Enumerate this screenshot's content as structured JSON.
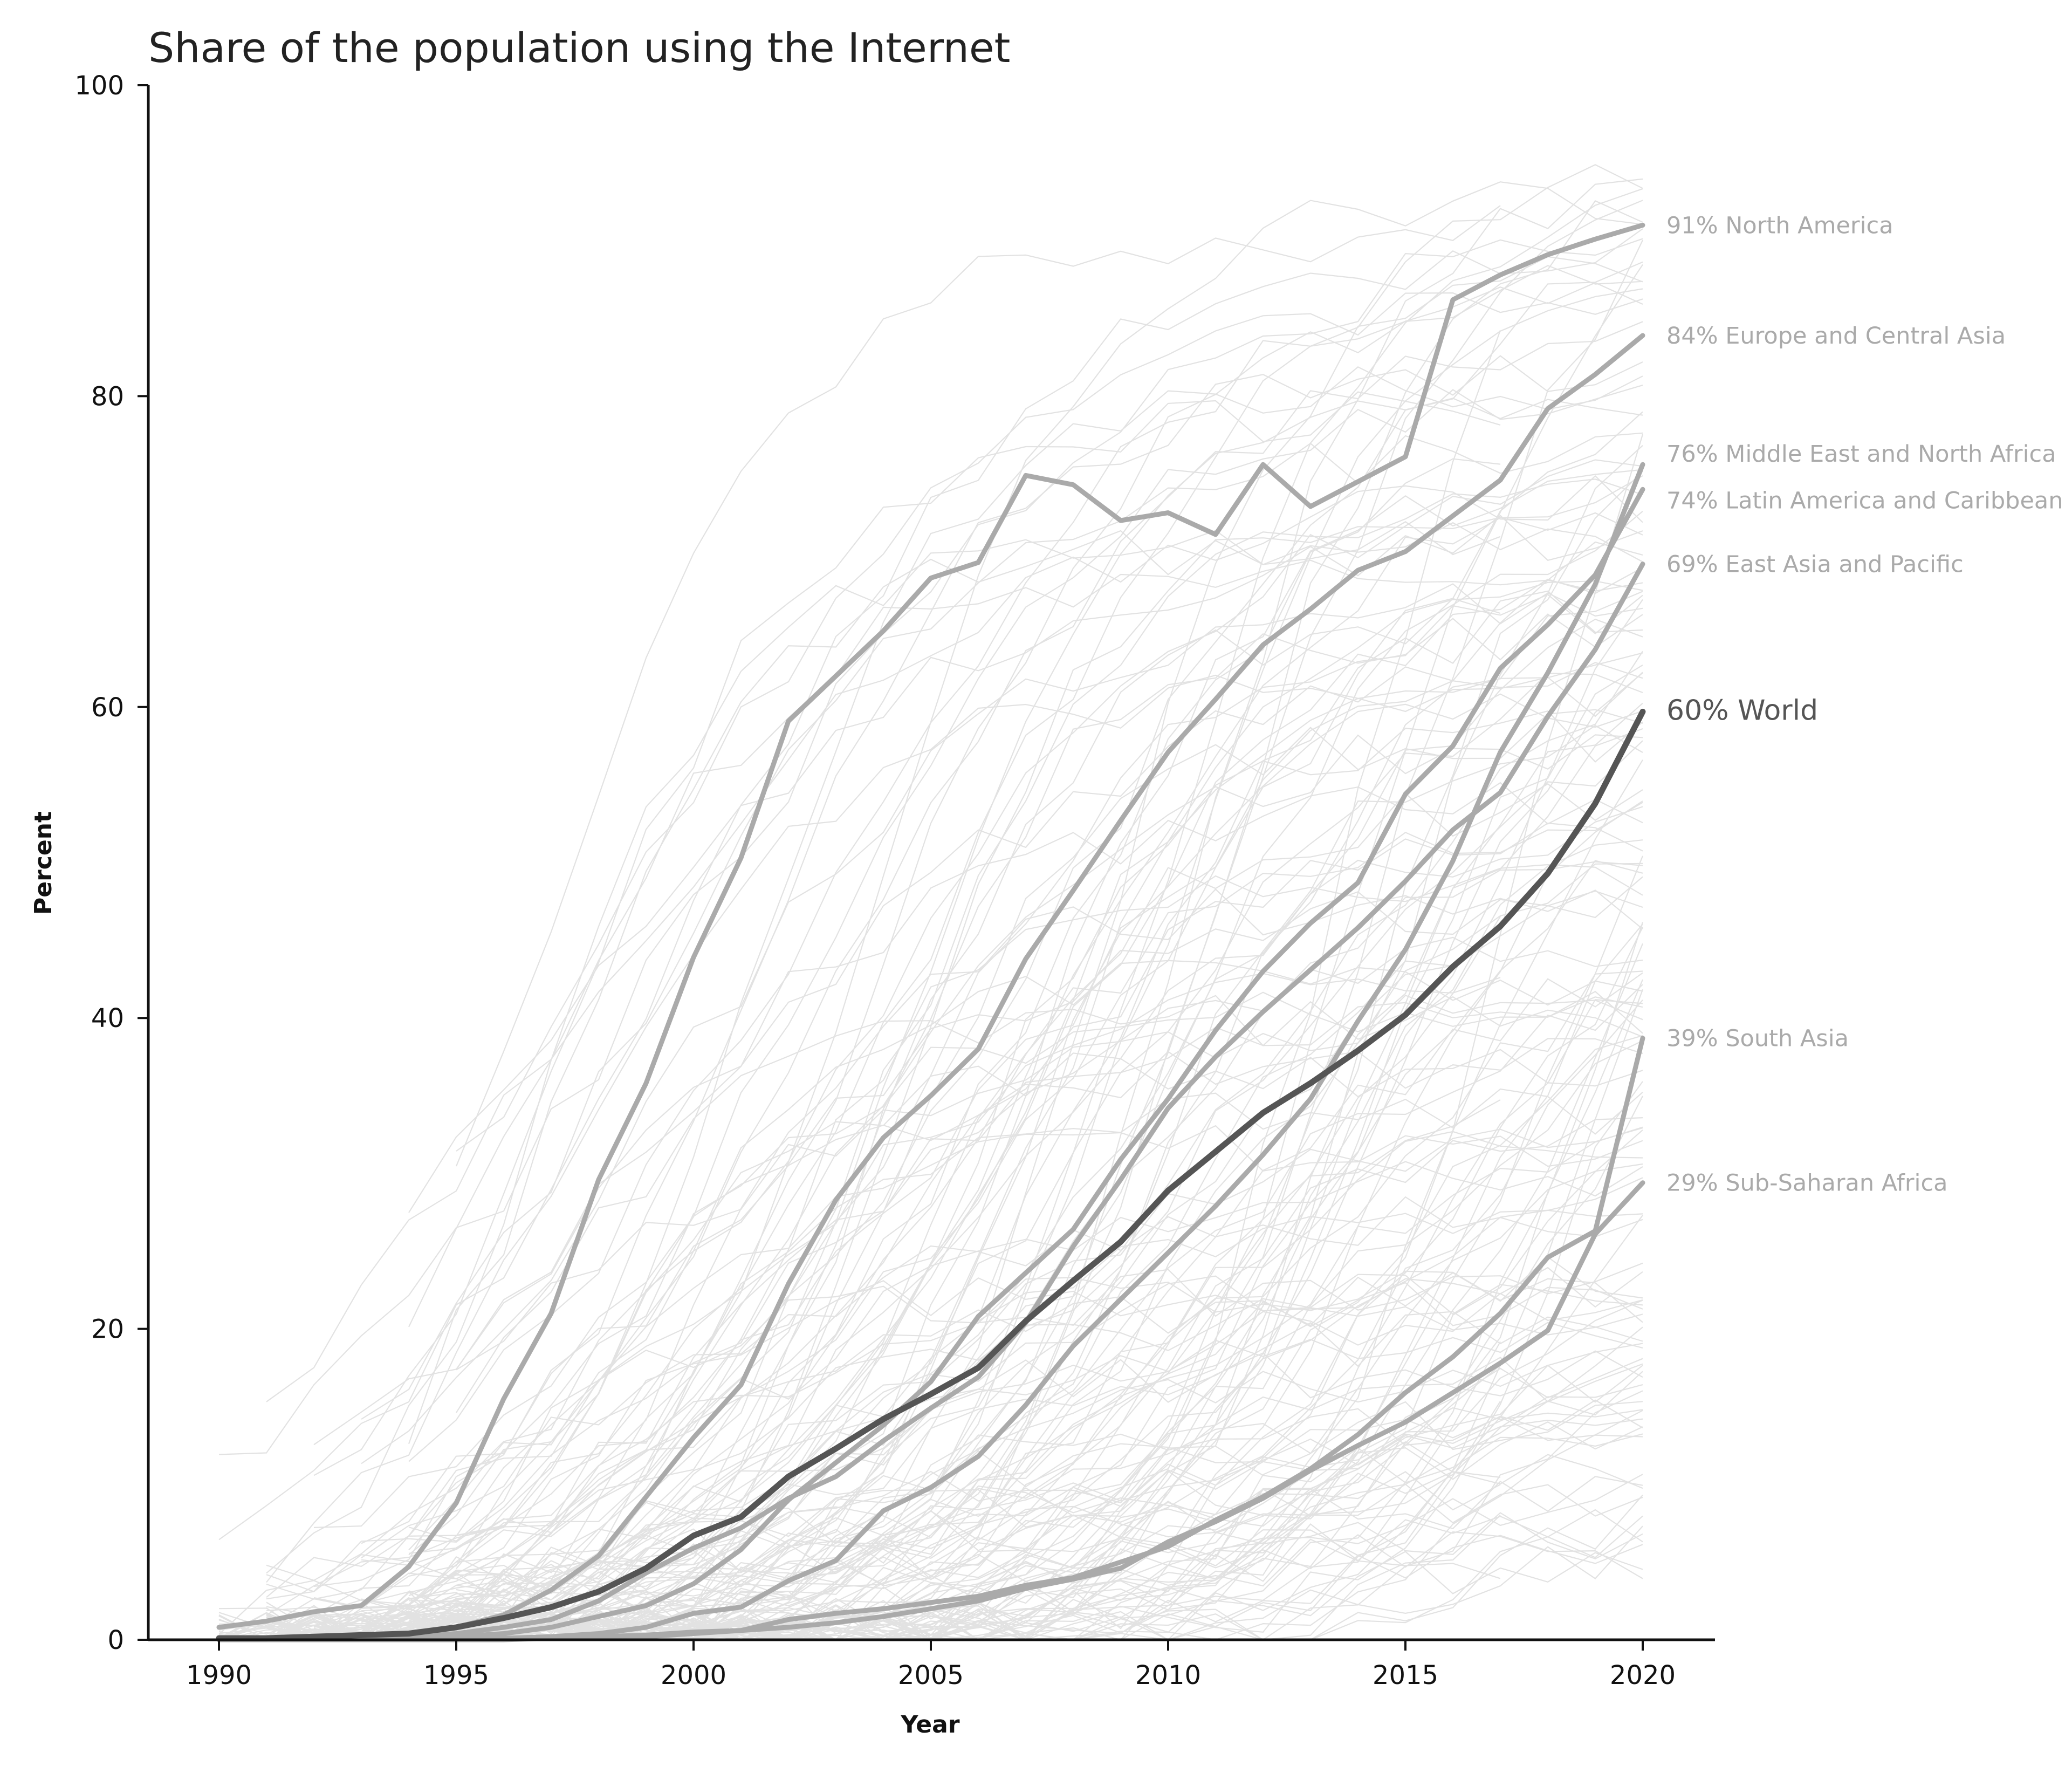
{
  "chart_data": {
    "type": "line",
    "title": "Share of the population using the Internet",
    "xlabel": "Year",
    "ylabel": "Percent",
    "xlim": [
      1990,
      2020
    ],
    "ylim": [
      0,
      100
    ],
    "x_ticks": [
      1990,
      1995,
      2000,
      2005,
      2010,
      2015,
      2020
    ],
    "y_ticks": [
      0,
      20,
      40,
      60,
      80,
      100
    ],
    "grid": false,
    "legend": "none (direct labels at right end of lines)",
    "colors": {
      "world": "#555555",
      "region": "#aaaaaa",
      "country": "#e2e2e2"
    },
    "series": [
      {
        "name": "World",
        "label": "60% World",
        "highlight": true,
        "x": [
          1990,
          1991,
          1992,
          1993,
          1994,
          1995,
          1996,
          1997,
          1998,
          1999,
          2000,
          2001,
          2002,
          2003,
          2004,
          2005,
          2006,
          2007,
          2008,
          2009,
          2010,
          2011,
          2012,
          2013,
          2014,
          2015,
          2016,
          2017,
          2018,
          2019,
          2020
        ],
        "y": [
          0.1,
          0.1,
          0.2,
          0.3,
          0.4,
          0.8,
          1.4,
          2.1,
          3.1,
          4.6,
          6.7,
          7.9,
          10.5,
          12.3,
          14.2,
          15.8,
          17.5,
          20.5,
          23.1,
          25.6,
          28.9,
          31.4,
          33.9,
          35.8,
          37.9,
          40.2,
          43.3,
          45.9,
          49.3,
          53.8,
          59.7
        ]
      },
      {
        "name": "North America",
        "label": "91% North America",
        "x": [
          1990,
          1991,
          1992,
          1993,
          1994,
          1995,
          1996,
          1997,
          1998,
          1999,
          2000,
          2001,
          2002,
          2003,
          2004,
          2005,
          2006,
          2007,
          2008,
          2009,
          2010,
          2011,
          2012,
          2013,
          2014,
          2015,
          2016,
          2017,
          2018,
          2019,
          2020
        ],
        "y": [
          0.8,
          1.2,
          1.8,
          2.2,
          4.7,
          8.8,
          15.5,
          21.0,
          29.6,
          35.8,
          43.9,
          50.3,
          59.1,
          62.0,
          64.9,
          68.3,
          69.3,
          74.9,
          74.3,
          72.0,
          72.5,
          71.1,
          75.6,
          72.9,
          74.5,
          76.1,
          86.2,
          87.8,
          89.1,
          90.1,
          91.0
        ]
      },
      {
        "name": "Europe and Central Asia",
        "label": "84% Europe and Central Asia",
        "x": [
          1990,
          1991,
          1992,
          1993,
          1994,
          1995,
          1996,
          1997,
          1998,
          1999,
          2000,
          2001,
          2002,
          2003,
          2004,
          2005,
          2006,
          2007,
          2008,
          2009,
          2010,
          2011,
          2012,
          2013,
          2014,
          2015,
          2016,
          2017,
          2018,
          2019,
          2020
        ],
        "y": [
          0.1,
          0.1,
          0.2,
          0.3,
          0.4,
          0.8,
          1.6,
          3.2,
          5.4,
          9.2,
          13.0,
          16.4,
          22.9,
          28.3,
          32.3,
          35.0,
          38.0,
          43.8,
          48.2,
          52.7,
          57.1,
          60.5,
          64.0,
          66.3,
          68.8,
          70.0,
          72.3,
          74.6,
          79.2,
          81.4,
          83.9
        ]
      },
      {
        "name": "Middle East and North Africa",
        "label": "76% Middle East and North Africa",
        "x": [
          1990,
          1991,
          1992,
          1993,
          1994,
          1995,
          1996,
          1997,
          1998,
          1999,
          2000,
          2001,
          2002,
          2003,
          2004,
          2005,
          2006,
          2007,
          2008,
          2009,
          2010,
          2011,
          2012,
          2013,
          2014,
          2015,
          2016,
          2017,
          2018,
          2019,
          2020
        ],
        "y": [
          0.0,
          0.0,
          0.0,
          0.0,
          0.0,
          0.0,
          0.1,
          0.2,
          0.4,
          0.8,
          1.7,
          2.1,
          3.8,
          5.1,
          8.3,
          9.8,
          11.8,
          15.1,
          18.9,
          21.9,
          24.9,
          27.9,
          31.2,
          34.8,
          39.8,
          44.4,
          50.1,
          57.1,
          62.2,
          67.9,
          75.6
        ]
      },
      {
        "name": "Latin America and Caribbean",
        "label": "74% Latin America and Caribbean",
        "x": [
          1990,
          1991,
          1992,
          1993,
          1994,
          1995,
          1996,
          1997,
          1998,
          1999,
          2000,
          2001,
          2002,
          2003,
          2004,
          2005,
          2006,
          2007,
          2008,
          2009,
          2010,
          2011,
          2012,
          2013,
          2014,
          2015,
          2016,
          2017,
          2018,
          2019,
          2020
        ],
        "y": [
          0.0,
          0.0,
          0.0,
          0.0,
          0.1,
          0.2,
          0.4,
          0.8,
          1.5,
          2.2,
          3.6,
          5.8,
          9.0,
          11.4,
          13.8,
          16.6,
          20.8,
          23.6,
          26.4,
          30.9,
          34.8,
          39.2,
          43.0,
          46.1,
          48.7,
          54.4,
          57.5,
          62.5,
          65.3,
          68.5,
          74.0
        ]
      },
      {
        "name": "East Asia and Pacific",
        "label": "69% East Asia and Pacific",
        "x": [
          1990,
          1991,
          1992,
          1993,
          1994,
          1995,
          1996,
          1997,
          1998,
          1999,
          2000,
          2001,
          2002,
          2003,
          2004,
          2005,
          2006,
          2007,
          2008,
          2009,
          2010,
          2011,
          2012,
          2013,
          2014,
          2015,
          2016,
          2017,
          2018,
          2019,
          2020
        ],
        "y": [
          0.0,
          0.0,
          0.0,
          0.1,
          0.2,
          0.4,
          0.8,
          1.3,
          2.5,
          4.3,
          5.9,
          7.2,
          9.1,
          10.5,
          12.8,
          14.9,
          16.9,
          20.4,
          25.3,
          29.6,
          34.2,
          37.5,
          40.4,
          43.1,
          45.8,
          48.8,
          52.1,
          54.5,
          59.4,
          63.7,
          69.2
        ]
      },
      {
        "name": "South Asia",
        "label": "39% South Asia",
        "x": [
          1990,
          1991,
          1992,
          1993,
          1994,
          1995,
          1996,
          1997,
          1998,
          1999,
          2000,
          2001,
          2002,
          2003,
          2004,
          2005,
          2006,
          2007,
          2008,
          2009,
          2010,
          2011,
          2012,
          2013,
          2014,
          2015,
          2016,
          2017,
          2018,
          2019,
          2020
        ],
        "y": [
          0.0,
          0.0,
          0.0,
          0.0,
          0.0,
          0.0,
          0.0,
          0.1,
          0.1,
          0.2,
          0.4,
          0.6,
          1.3,
          1.7,
          2.0,
          2.4,
          2.8,
          3.5,
          4.0,
          5.0,
          6.0,
          7.7,
          9.2,
          11.0,
          13.2,
          15.9,
          18.2,
          21.0,
          24.6,
          26.3,
          38.7
        ]
      },
      {
        "name": "Sub-Saharan Africa",
        "label": "29% Sub-Saharan Africa",
        "x": [
          1990,
          1991,
          1992,
          1993,
          1994,
          1995,
          1996,
          1997,
          1998,
          1999,
          2000,
          2001,
          2002,
          2003,
          2004,
          2005,
          2006,
          2007,
          2008,
          2009,
          2010,
          2011,
          2012,
          2013,
          2014,
          2015,
          2016,
          2017,
          2018,
          2019,
          2020
        ],
        "y": [
          0.0,
          0.0,
          0.0,
          0.0,
          0.0,
          0.0,
          0.1,
          0.1,
          0.2,
          0.3,
          0.5,
          0.6,
          0.8,
          1.1,
          1.5,
          2.0,
          2.5,
          3.3,
          3.9,
          4.6,
          6.3,
          7.6,
          9.1,
          10.9,
          12.5,
          14.0,
          15.9,
          17.8,
          19.9,
          26.1,
          29.4
        ]
      }
    ]
  }
}
